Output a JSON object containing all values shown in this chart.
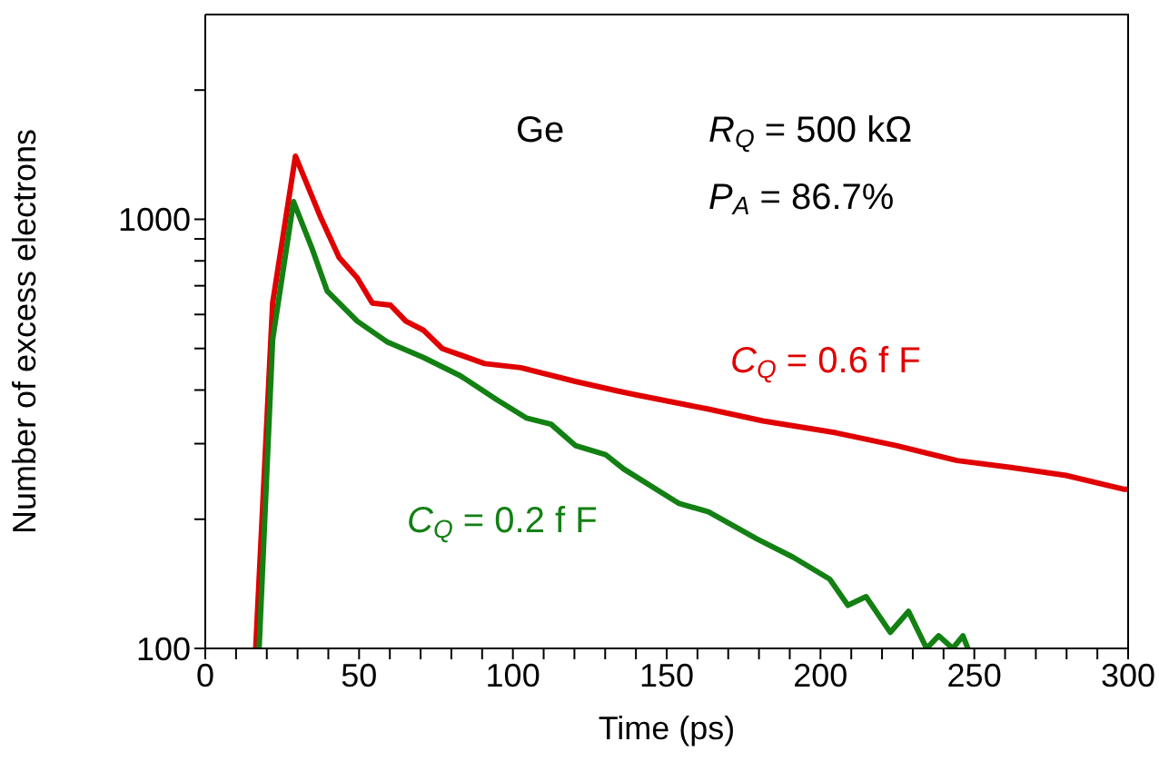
{
  "chart_data": {
    "type": "line",
    "xlabel": "Time (ps)",
    "ylabel": "Number of excess electrons",
    "log": "y",
    "xlim": [
      0,
      300
    ],
    "ylim": [
      100,
      3000
    ],
    "xticks": [
      0,
      {
        "value": 10,
        "label": null
      },
      {
        "value": 20,
        "label": null
      },
      {
        "value": 30,
        "label": null
      },
      {
        "value": 40,
        "label": null
      },
      50,
      {
        "value": 60,
        "label": null
      },
      {
        "value": 70,
        "label": null
      },
      {
        "value": 80,
        "label": null
      },
      {
        "value": 90,
        "label": null
      },
      100,
      {
        "value": 110,
        "label": null
      },
      {
        "value": 120,
        "label": null
      },
      {
        "value": 130,
        "label": null
      },
      {
        "value": 140,
        "label": null
      },
      150,
      {
        "value": 160,
        "label": null
      },
      {
        "value": 170,
        "label": null
      },
      {
        "value": 180,
        "label": null
      },
      {
        "value": 190,
        "label": null
      },
      200,
      {
        "value": 210,
        "label": null
      },
      {
        "value": 220,
        "label": null
      },
      {
        "value": 230,
        "label": null
      },
      {
        "value": 240,
        "label": null
      },
      250,
      {
        "value": 260,
        "label": null
      },
      {
        "value": 270,
        "label": null
      },
      {
        "value": 280,
        "label": null
      },
      {
        "value": 290,
        "label": null
      },
      300
    ],
    "yticks": [
      100,
      {
        "value": 200,
        "label": null
      },
      {
        "value": 300,
        "label": null
      },
      {
        "value": 400,
        "label": null
      },
      {
        "value": 500,
        "label": null
      },
      {
        "value": 600,
        "label": null
      },
      {
        "value": 700,
        "label": null
      },
      {
        "value": 800,
        "label": null
      },
      {
        "value": 900,
        "label": null
      },
      1000,
      {
        "value": 2000,
        "label": null
      }
    ],
    "annotations": [
      "Ge",
      "R$_{Q}$ = 500 kΩ",
      "P$_{A}$ = 86.7%"
    ],
    "series": [
      {
        "name": "C$_{Q}$ = 0.6 f F",
        "color": "#e00000",
        "x": [
          16.4,
          21.9,
          29.3,
          37.6,
          43.5,
          49.4,
          54.3,
          60.2,
          65.2,
          71,
          77,
          90.8,
          102.6,
          120.3,
          134,
          140,
          163.6,
          181.3,
          205,
          224.6,
          244.4,
          262,
          279.8,
          298.5,
          300
        ],
        "values": [
          100,
          638,
          1403,
          1007,
          815,
          730,
          638,
          631,
          579,
          551,
          500,
          461,
          451,
          419,
          398,
          390,
          361,
          339,
          318,
          297,
          274,
          264,
          253,
          235,
          235
        ]
      },
      {
        "name": "C$_{Q}$ = 0.2 f F",
        "color": "#138013",
        "x": [
          17.5,
          21.9,
          28.7,
          34.7,
          39.6,
          49.4,
          59.3,
          71,
          82.9,
          94.7,
          104.5,
          112.4,
          120.3,
          130.1,
          136,
          153.8,
          163.6,
          179.3,
          191.2,
          203,
          208.9,
          214.8,
          222.7,
          228.6,
          234.5,
          238.4,
          243,
          246.3,
          247.9
        ],
        "values": [
          100,
          525,
          1099,
          855,
          681,
          579,
          517,
          476,
          432,
          380,
          344,
          333,
          297,
          283,
          262,
          218,
          208,
          180,
          163,
          145,
          126,
          132,
          109,
          122,
          100,
          107,
          100,
          107,
          100
        ]
      }
    ]
  }
}
